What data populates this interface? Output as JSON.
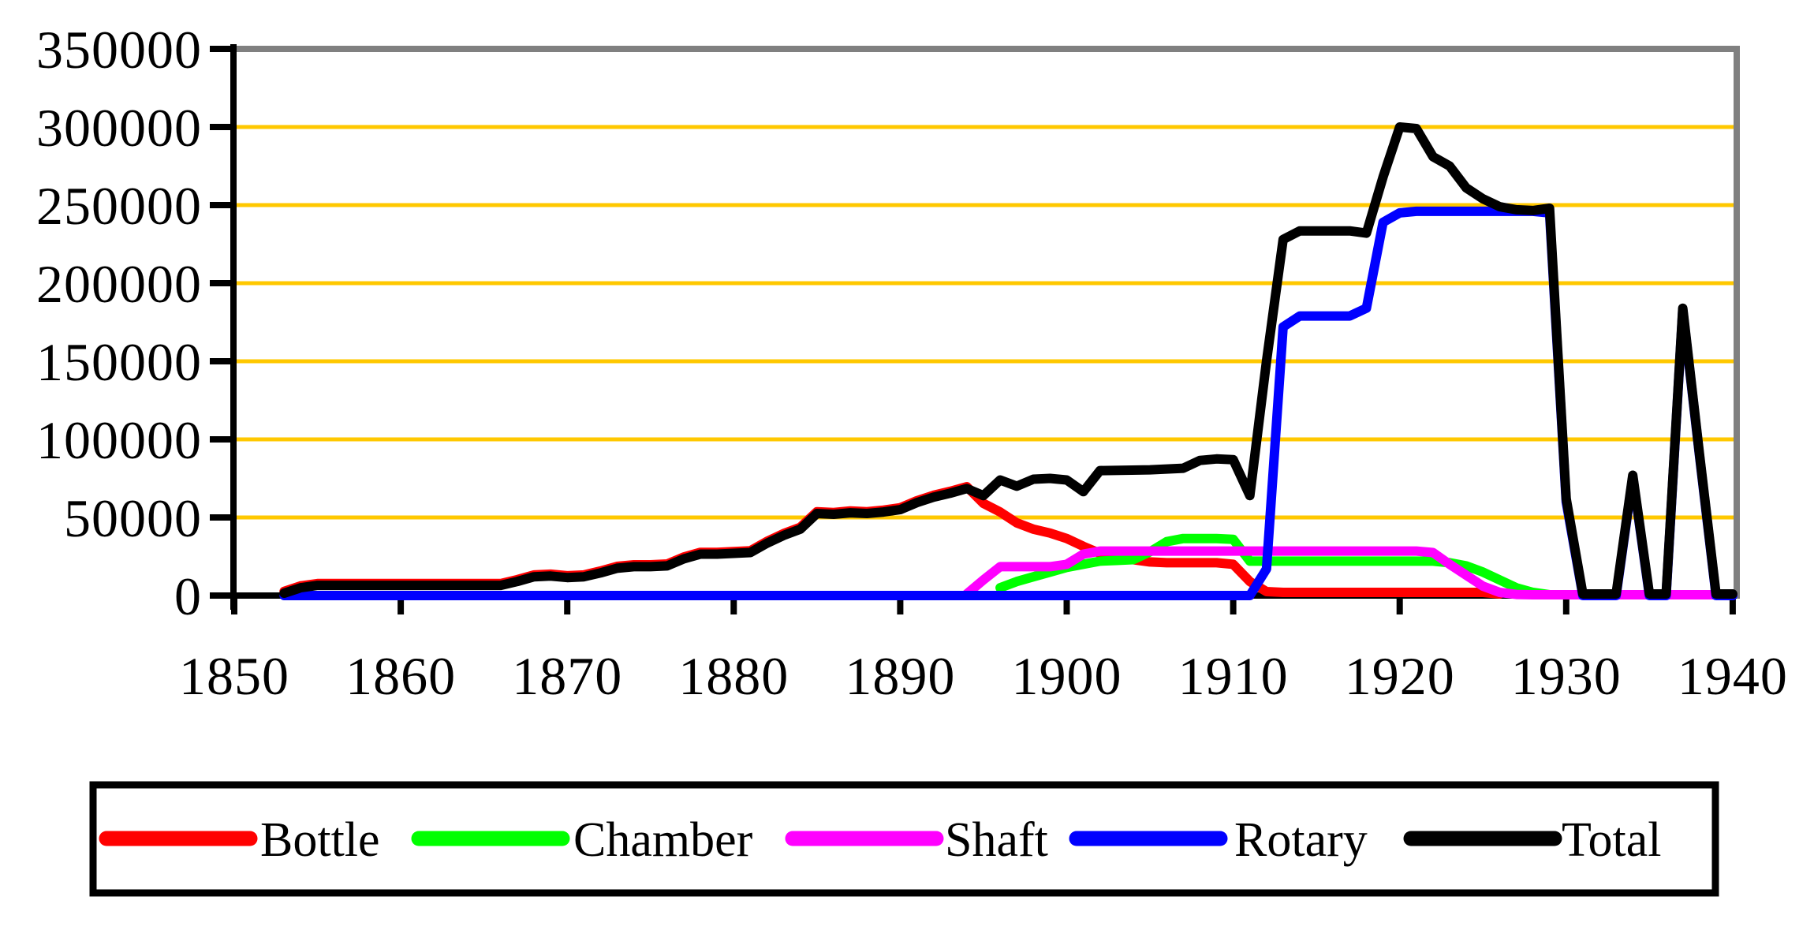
{
  "chart_data": {
    "type": "line",
    "title": "",
    "xlabel": "",
    "ylabel": "",
    "x_axis": {
      "ticks": [
        1850,
        1860,
        1870,
        1880,
        1890,
        1900,
        1910,
        1920,
        1930,
        1940
      ],
      "range": [
        1850,
        1940
      ]
    },
    "y_axis": {
      "ticks": [
        0,
        50000,
        100000,
        150000,
        200000,
        250000,
        300000,
        350000
      ],
      "range": [
        0,
        350000
      ]
    },
    "grid": {
      "color": "#FFC800",
      "lines_at": [
        50000,
        100000,
        150000,
        200000,
        250000,
        300000
      ]
    },
    "frame": {
      "axis_color": "#000000",
      "border_color": "#808080"
    },
    "legend": {
      "position": "bottom",
      "entries": [
        "Bottle",
        "Chamber",
        "Shaft",
        "Rotary",
        "Total"
      ]
    },
    "series": [
      {
        "name": "Bottle",
        "color": "#FF0000",
        "points": [
          [
            1853,
            2700
          ],
          [
            1854,
            6200
          ],
          [
            1855,
            7700
          ],
          [
            1866,
            7700
          ],
          [
            1867,
            10200
          ],
          [
            1868,
            13200
          ],
          [
            1869,
            13700
          ],
          [
            1870,
            12700
          ],
          [
            1871,
            13200
          ],
          [
            1872,
            15700
          ],
          [
            1873,
            18700
          ],
          [
            1874,
            19700
          ],
          [
            1875,
            19700
          ],
          [
            1876,
            20200
          ],
          [
            1877,
            24700
          ],
          [
            1878,
            27700
          ],
          [
            1879,
            27700
          ],
          [
            1880,
            28200
          ],
          [
            1881,
            28700
          ],
          [
            1882,
            34700
          ],
          [
            1883,
            39700
          ],
          [
            1884,
            43700
          ],
          [
            1885,
            53700
          ],
          [
            1886,
            53200
          ],
          [
            1887,
            54200
          ],
          [
            1888,
            53700
          ],
          [
            1889,
            54700
          ],
          [
            1890,
            56200
          ],
          [
            1891,
            60700
          ],
          [
            1892,
            64200
          ],
          [
            1893,
            66700
          ],
          [
            1894,
            69700
          ],
          [
            1895,
            59000
          ],
          [
            1896,
            53500
          ],
          [
            1897,
            46500
          ],
          [
            1898,
            42500
          ],
          [
            1899,
            40000
          ],
          [
            1900,
            36500
          ],
          [
            1901,
            31500
          ],
          [
            1902,
            27000
          ],
          [
            1903,
            25000
          ],
          [
            1904,
            23000
          ],
          [
            1905,
            21500
          ],
          [
            1906,
            21000
          ],
          [
            1909,
            21000
          ],
          [
            1910,
            20000
          ],
          [
            1911,
            9000
          ],
          [
            1912,
            2500
          ],
          [
            1913,
            2000
          ],
          [
            1925,
            2000
          ],
          [
            1926,
            1000
          ]
        ]
      },
      {
        "name": "Chamber",
        "color": "#00FF00",
        "points": [
          [
            1896,
            5000
          ],
          [
            1897,
            9000
          ],
          [
            1898,
            12000
          ],
          [
            1899,
            15000
          ],
          [
            1900,
            18000
          ],
          [
            1901,
            20000
          ],
          [
            1902,
            22000
          ],
          [
            1903,
            22500
          ],
          [
            1904,
            23000
          ],
          [
            1905,
            28000
          ],
          [
            1906,
            34500
          ],
          [
            1907,
            36500
          ],
          [
            1909,
            36500
          ],
          [
            1910,
            36000
          ],
          [
            1911,
            22000
          ],
          [
            1922,
            22000
          ],
          [
            1923,
            21000
          ],
          [
            1924,
            19000
          ],
          [
            1925,
            15000
          ],
          [
            1926,
            10000
          ],
          [
            1927,
            5000
          ],
          [
            1928,
            2000
          ],
          [
            1929,
            500
          ]
        ]
      },
      {
        "name": "Shaft",
        "color": "#FF00FF",
        "points": [
          [
            1894,
            1000
          ],
          [
            1895,
            10000
          ],
          [
            1896,
            18500
          ],
          [
            1899,
            18500
          ],
          [
            1900,
            20000
          ],
          [
            1901,
            26500
          ],
          [
            1902,
            28500
          ],
          [
            1921,
            28500
          ],
          [
            1922,
            27500
          ],
          [
            1923,
            20000
          ],
          [
            1924,
            13000
          ],
          [
            1925,
            6000
          ],
          [
            1926,
            2000
          ],
          [
            1927,
            700
          ],
          [
            1928,
            500
          ],
          [
            1940,
            500
          ]
        ]
      },
      {
        "name": "Rotary",
        "color": "#0000FF",
        "points": [
          [
            1853,
            0
          ],
          [
            1911,
            0
          ],
          [
            1912,
            17000
          ],
          [
            1913,
            172000
          ],
          [
            1914,
            179000
          ],
          [
            1917,
            179000
          ],
          [
            1918,
            184000
          ],
          [
            1919,
            239000
          ],
          [
            1920,
            245000
          ],
          [
            1921,
            246000
          ],
          [
            1928,
            246000
          ],
          [
            1929,
            245000
          ],
          [
            1930,
            60000
          ],
          [
            1931,
            0
          ],
          [
            1933,
            0
          ],
          [
            1934,
            76000
          ],
          [
            1935,
            0
          ],
          [
            1936,
            0
          ],
          [
            1937,
            183000
          ],
          [
            1938,
            90000
          ],
          [
            1939,
            0
          ],
          [
            1940,
            0
          ]
        ]
      },
      {
        "name": "Total",
        "color": "#000000",
        "points": [
          [
            1853,
            1500
          ],
          [
            1854,
            5000
          ],
          [
            1855,
            6500
          ],
          [
            1866,
            6500
          ],
          [
            1867,
            9000
          ],
          [
            1868,
            12000
          ],
          [
            1869,
            12500
          ],
          [
            1870,
            11500
          ],
          [
            1871,
            12000
          ],
          [
            1872,
            14500
          ],
          [
            1873,
            17500
          ],
          [
            1874,
            18500
          ],
          [
            1875,
            18500
          ],
          [
            1876,
            19000
          ],
          [
            1877,
            23500
          ],
          [
            1878,
            26500
          ],
          [
            1879,
            26500
          ],
          [
            1880,
            27000
          ],
          [
            1881,
            27500
          ],
          [
            1882,
            33500
          ],
          [
            1883,
            38500
          ],
          [
            1884,
            42500
          ],
          [
            1885,
            52500
          ],
          [
            1886,
            52000
          ],
          [
            1887,
            53000
          ],
          [
            1888,
            52500
          ],
          [
            1889,
            53500
          ],
          [
            1890,
            55000
          ],
          [
            1891,
            59500
          ],
          [
            1892,
            63000
          ],
          [
            1893,
            65500
          ],
          [
            1894,
            68500
          ],
          [
            1895,
            64000
          ],
          [
            1896,
            74000
          ],
          [
            1897,
            70000
          ],
          [
            1898,
            74500
          ],
          [
            1899,
            75000
          ],
          [
            1900,
            74000
          ],
          [
            1901,
            66500
          ],
          [
            1902,
            80000
          ],
          [
            1905,
            80500
          ],
          [
            1906,
            81000
          ],
          [
            1907,
            81500
          ],
          [
            1908,
            86500
          ],
          [
            1909,
            87500
          ],
          [
            1910,
            87000
          ],
          [
            1911,
            64000
          ],
          [
            1912,
            150000
          ],
          [
            1913,
            228000
          ],
          [
            1914,
            233500
          ],
          [
            1917,
            233500
          ],
          [
            1918,
            232000
          ],
          [
            1919,
            268000
          ],
          [
            1920,
            300000
          ],
          [
            1921,
            299000
          ],
          [
            1922,
            281000
          ],
          [
            1923,
            275000
          ],
          [
            1924,
            261000
          ],
          [
            1925,
            254000
          ],
          [
            1926,
            249000
          ],
          [
            1927,
            247000
          ],
          [
            1928,
            246500
          ],
          [
            1929,
            248000
          ],
          [
            1930,
            62000
          ],
          [
            1931,
            1000
          ],
          [
            1933,
            1000
          ],
          [
            1934,
            77000
          ],
          [
            1935,
            1000
          ],
          [
            1936,
            1000
          ],
          [
            1937,
            184000
          ],
          [
            1938,
            91000
          ],
          [
            1939,
            1000
          ],
          [
            1940,
            1000
          ]
        ]
      }
    ]
  }
}
